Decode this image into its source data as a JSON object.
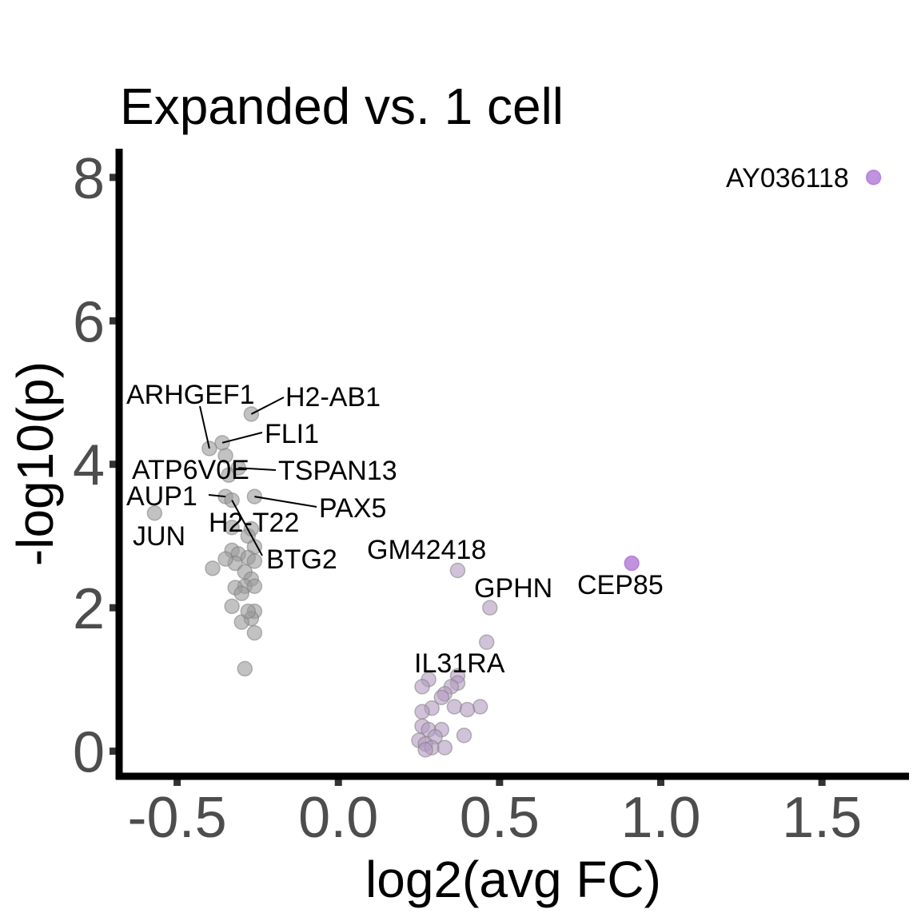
{
  "chart_data": {
    "type": "scatter",
    "title": "Expanded vs. 1 cell",
    "xlabel": "log2(avg FC)",
    "ylabel": "-log10(p)",
    "xlim": [
      -0.68,
      1.77
    ],
    "ylim": [
      -0.35,
      8.4
    ],
    "xticks": [
      -0.5,
      0.0,
      0.5,
      1.0,
      1.5
    ],
    "xtick_labels": [
      "-0.5",
      "0.0",
      "0.5",
      "1.0",
      "1.5"
    ],
    "yticks": [
      0,
      2,
      4,
      6,
      8
    ],
    "ytick_labels": [
      "0",
      "2",
      "4",
      "6",
      "8"
    ],
    "grid": false,
    "colors": {
      "down": "#999999",
      "up": "#b39ac2",
      "strong_up": "#b57fd9",
      "point_edge": "#808080",
      "tick_label": "#4d4d4d"
    },
    "points": [
      {
        "x": 1.66,
        "y": 8.0,
        "group": "strong_up"
      },
      {
        "x": 0.91,
        "y": 2.62,
        "group": "strong_up"
      },
      {
        "x": -0.27,
        "y": 4.7,
        "group": "down"
      },
      {
        "x": -0.4,
        "y": 4.22,
        "group": "down"
      },
      {
        "x": -0.36,
        "y": 4.3,
        "group": "down"
      },
      {
        "x": -0.35,
        "y": 4.12,
        "group": "down"
      },
      {
        "x": -0.34,
        "y": 3.85,
        "group": "down"
      },
      {
        "x": -0.31,
        "y": 3.95,
        "group": "down"
      },
      {
        "x": -0.26,
        "y": 3.55,
        "group": "down"
      },
      {
        "x": -0.35,
        "y": 3.55,
        "group": "down"
      },
      {
        "x": -0.33,
        "y": 3.5,
        "group": "down"
      },
      {
        "x": -0.57,
        "y": 3.32,
        "group": "down"
      },
      {
        "x": -0.27,
        "y": 3.1,
        "group": "down"
      },
      {
        "x": -0.28,
        "y": 3.0,
        "group": "down"
      },
      {
        "x": -0.26,
        "y": 2.85,
        "group": "down"
      },
      {
        "x": -0.33,
        "y": 2.8,
        "group": "down"
      },
      {
        "x": -0.31,
        "y": 2.75,
        "group": "down"
      },
      {
        "x": -0.28,
        "y": 2.7,
        "group": "down"
      },
      {
        "x": -0.26,
        "y": 2.65,
        "group": "down"
      },
      {
        "x": -0.32,
        "y": 2.62,
        "group": "down"
      },
      {
        "x": -0.35,
        "y": 2.68,
        "group": "down"
      },
      {
        "x": -0.39,
        "y": 2.55,
        "group": "down"
      },
      {
        "x": -0.29,
        "y": 2.5,
        "group": "down"
      },
      {
        "x": -0.27,
        "y": 2.4,
        "group": "down"
      },
      {
        "x": -0.29,
        "y": 2.3,
        "group": "down"
      },
      {
        "x": -0.26,
        "y": 2.3,
        "group": "down"
      },
      {
        "x": -0.32,
        "y": 2.28,
        "group": "down"
      },
      {
        "x": -0.3,
        "y": 2.2,
        "group": "down"
      },
      {
        "x": -0.33,
        "y": 2.02,
        "group": "down"
      },
      {
        "x": -0.26,
        "y": 1.95,
        "group": "down"
      },
      {
        "x": -0.27,
        "y": 1.85,
        "group": "down"
      },
      {
        "x": -0.3,
        "y": 1.8,
        "group": "down"
      },
      {
        "x": -0.26,
        "y": 1.65,
        "group": "down"
      },
      {
        "x": -0.28,
        "y": 1.95,
        "group": "down"
      },
      {
        "x": -0.29,
        "y": 1.15,
        "group": "down"
      },
      {
        "x": -0.33,
        "y": 3.12,
        "group": "down"
      },
      {
        "x": 0.37,
        "y": 2.52,
        "group": "up"
      },
      {
        "x": 0.47,
        "y": 2.0,
        "group": "up"
      },
      {
        "x": 0.46,
        "y": 1.52,
        "group": "up"
      },
      {
        "x": 0.37,
        "y": 1.05,
        "group": "up"
      },
      {
        "x": 0.37,
        "y": 0.95,
        "group": "up"
      },
      {
        "x": 0.28,
        "y": 1.0,
        "group": "up"
      },
      {
        "x": 0.26,
        "y": 0.9,
        "group": "up"
      },
      {
        "x": 0.35,
        "y": 0.9,
        "group": "up"
      },
      {
        "x": 0.33,
        "y": 0.8,
        "group": "up"
      },
      {
        "x": 0.32,
        "y": 0.75,
        "group": "up"
      },
      {
        "x": 0.36,
        "y": 0.62,
        "group": "up"
      },
      {
        "x": 0.44,
        "y": 0.62,
        "group": "up"
      },
      {
        "x": 0.4,
        "y": 0.58,
        "group": "up"
      },
      {
        "x": 0.29,
        "y": 0.6,
        "group": "up"
      },
      {
        "x": 0.26,
        "y": 0.55,
        "group": "up"
      },
      {
        "x": 0.26,
        "y": 0.35,
        "group": "up"
      },
      {
        "x": 0.28,
        "y": 0.3,
        "group": "up"
      },
      {
        "x": 0.32,
        "y": 0.3,
        "group": "up"
      },
      {
        "x": 0.39,
        "y": 0.22,
        "group": "up"
      },
      {
        "x": 0.3,
        "y": 0.2,
        "group": "up"
      },
      {
        "x": 0.25,
        "y": 0.15,
        "group": "up"
      },
      {
        "x": 0.27,
        "y": 0.1,
        "group": "up"
      },
      {
        "x": 0.29,
        "y": 0.05,
        "group": "up"
      },
      {
        "x": 0.33,
        "y": 0.05,
        "group": "up"
      },
      {
        "x": 0.27,
        "y": 0.02,
        "group": "up"
      }
    ],
    "annotations": [
      {
        "label": "AY036118",
        "x": 1.66,
        "y": 8.0
      },
      {
        "label": "CEP85",
        "x": 0.91,
        "y": 2.62
      },
      {
        "label": "GM42418",
        "x": 0.37,
        "y": 2.52
      },
      {
        "label": "GPHN",
        "x": 0.47,
        "y": 2.0
      },
      {
        "label": "IL31RA",
        "x": 0.37,
        "y": 1.05
      },
      {
        "label": "H2-AB1",
        "x": -0.27,
        "y": 4.7
      },
      {
        "label": "ARHGEF1",
        "x": -0.4,
        "y": 4.22
      },
      {
        "label": "FLI1",
        "x": -0.36,
        "y": 4.3
      },
      {
        "label": "ATP6V0E",
        "x": -0.34,
        "y": 3.85
      },
      {
        "label": "TSPAN13",
        "x": -0.31,
        "y": 3.95
      },
      {
        "label": "PAX5",
        "x": -0.26,
        "y": 3.55
      },
      {
        "label": "AUP1",
        "x": -0.35,
        "y": 3.55
      },
      {
        "label": "JUN",
        "x": -0.57,
        "y": 3.32
      },
      {
        "label": "H2-T22",
        "x": -0.27,
        "y": 3.1
      },
      {
        "label": "BTG2",
        "x": -0.33,
        "y": 3.5
      }
    ]
  }
}
